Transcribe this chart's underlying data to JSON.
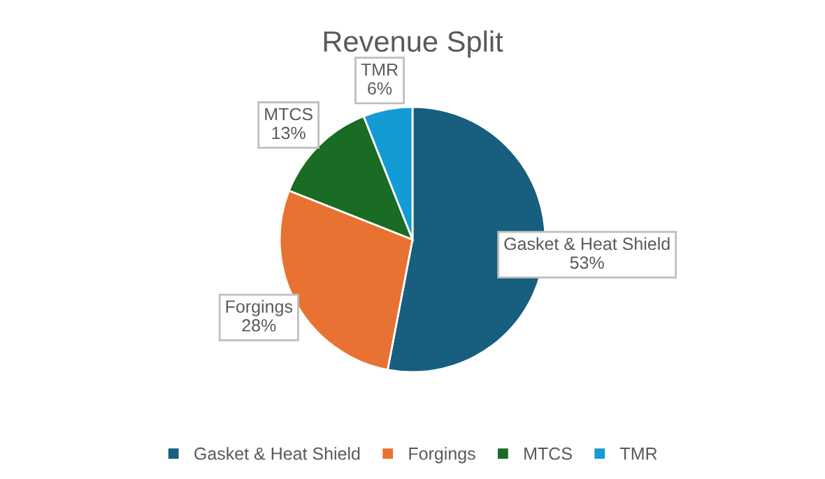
{
  "chart_data": {
    "type": "pie",
    "title": "Revenue Split",
    "categories": [
      "Gasket & Heat Shield",
      "Forgings",
      "MTCS",
      "TMR"
    ],
    "values": [
      53,
      28,
      13,
      6
    ],
    "value_labels": [
      "53%",
      "28%",
      "13%",
      "6%"
    ],
    "colors": [
      "#175e7f",
      "#e87232",
      "#1a6b24",
      "#139bd5"
    ],
    "legend": "bottom"
  }
}
